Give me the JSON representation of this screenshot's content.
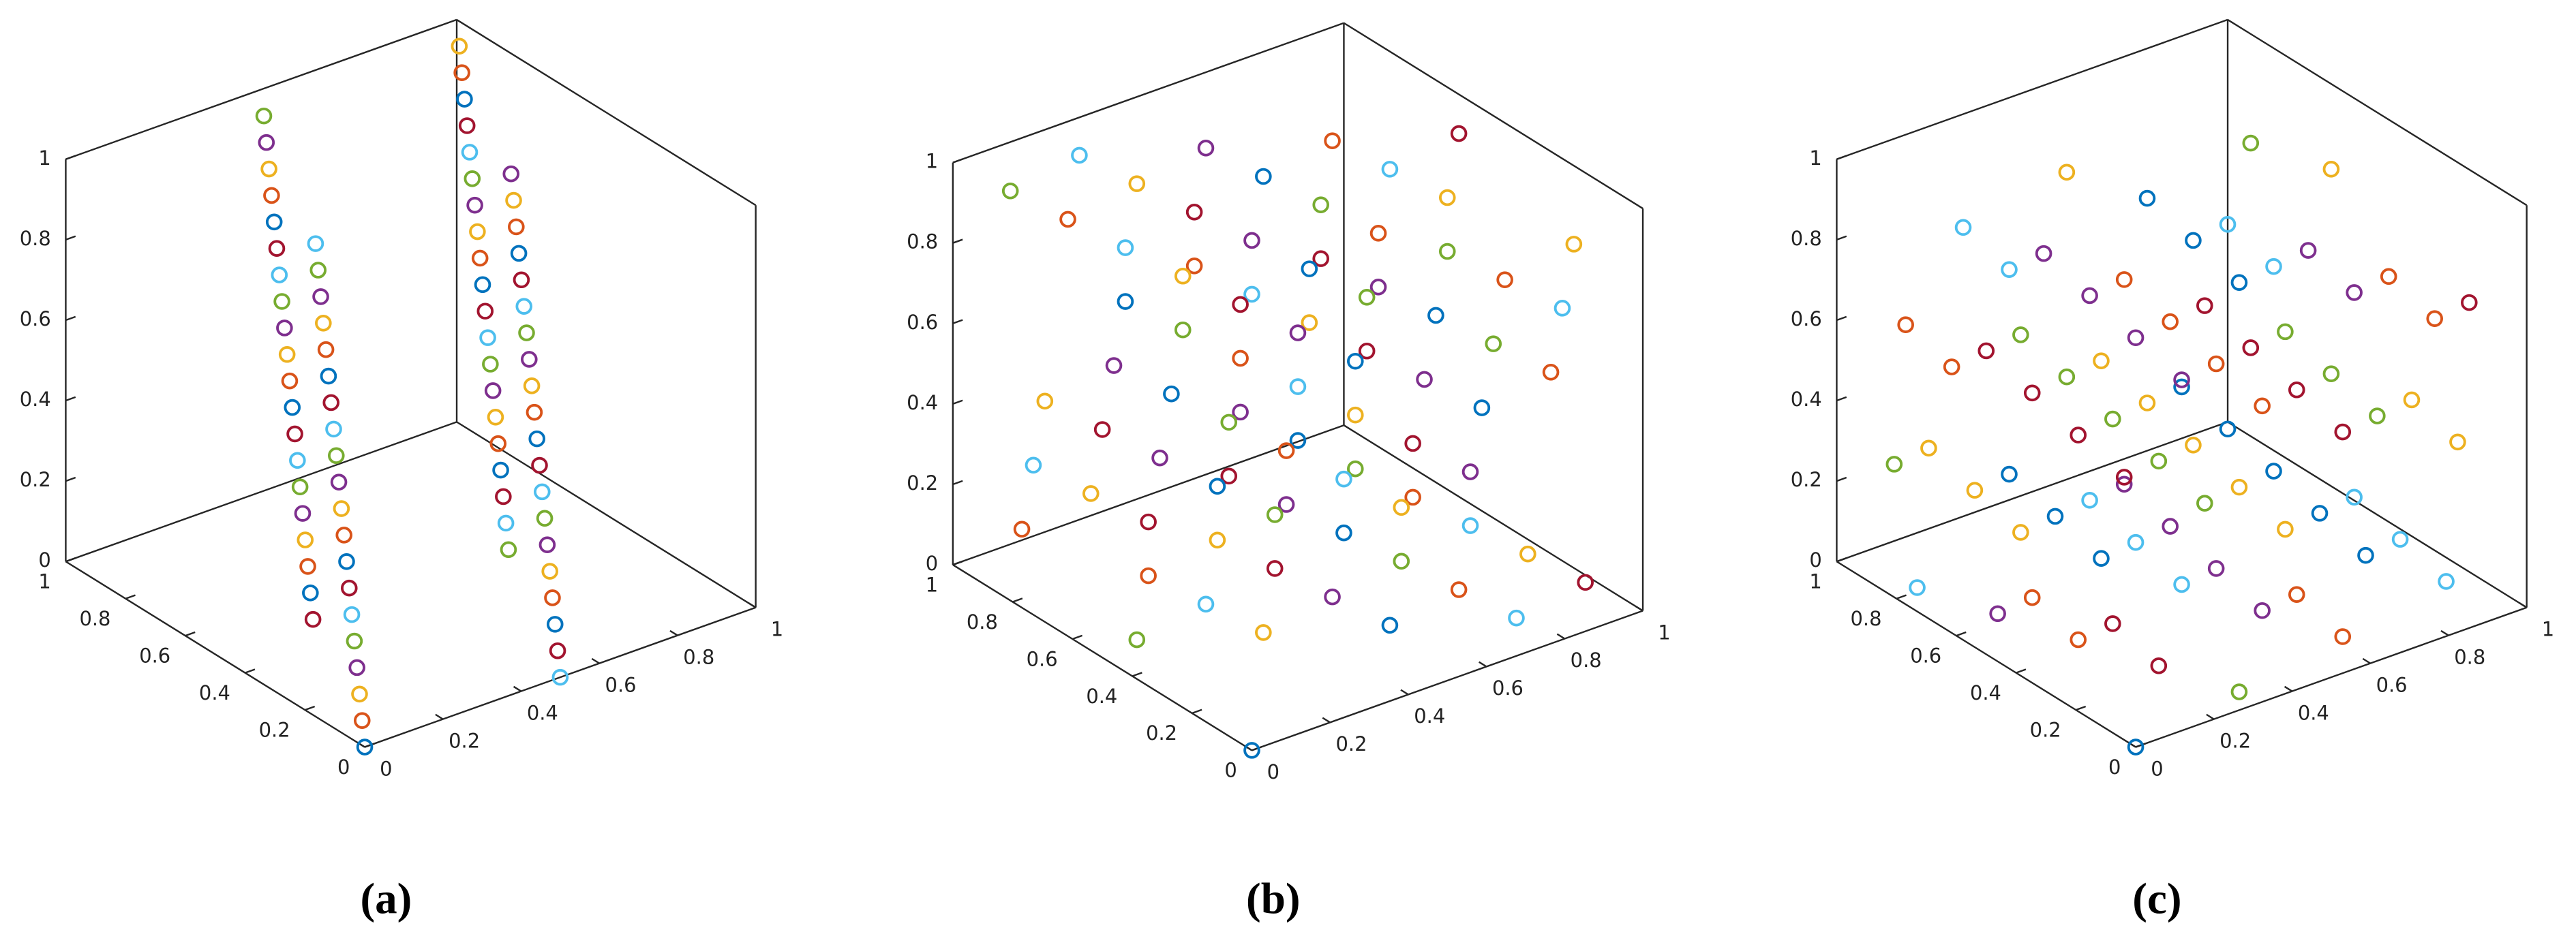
{
  "chart_data": [
    {
      "type": "scatter3d",
      "label": "(a)",
      "colors": [
        "#0072BD",
        "#D95319",
        "#EDB120",
        "#7E2F8E",
        "#77AC30",
        "#4DBEEE",
        "#A2142F"
      ],
      "xlim": [
        0,
        1
      ],
      "ylim": [
        0,
        1
      ],
      "zlim": [
        0,
        1
      ],
      "xticks": [
        0,
        0.2,
        0.4,
        0.6,
        0.8,
        1
      ],
      "yticks": [
        0,
        0.2,
        0.4,
        0.6,
        0.8,
        1
      ],
      "zticks": [
        0,
        0.2,
        0.4,
        0.6,
        0.8,
        1
      ],
      "x": [
        0,
        0.0125,
        0.025,
        0.0375,
        0.05,
        0.0625,
        0.075,
        0.0875,
        0.1,
        0.1125,
        0.125,
        0.1375,
        0.15,
        0.1625,
        0.175,
        0.1875,
        0.2,
        0.2125,
        0.225,
        0.2375,
        0.25,
        0.2625,
        0.275,
        0.2875,
        0.3,
        0.3125,
        0.325,
        0.3375,
        0.35,
        0.3625,
        0.375,
        0.3875,
        0.4,
        0.4125,
        0.425,
        0.4375,
        0.45,
        0.4625,
        0.475,
        0.4875,
        0.5,
        0.5125,
        0.525,
        0.5375,
        0.55,
        0.5625,
        0.575,
        0.5875,
        0.6,
        0.6125,
        0.625,
        0.6375,
        0.65,
        0.6625,
        0.675,
        0.6875,
        0.7,
        0.7125,
        0.725,
        0.7375,
        0.75,
        0.7625,
        0.775,
        0.7875,
        0.8,
        0.8125,
        0.825,
        0.8375,
        0.85,
        0.8625,
        0.875,
        0.8875,
        0.9,
        0.9125,
        0.925,
        0.9375,
        0.95,
        0.9625,
        0.975,
        0.9875
      ],
      "y": [
        0,
        0.025,
        0.05,
        0.075,
        0.1,
        0.125,
        0.15,
        0.175,
        0.2,
        0.225,
        0.25,
        0.275,
        0.3,
        0.325,
        0.35,
        0.375,
        0.4,
        0.425,
        0.45,
        0.475,
        0.5,
        0.525,
        0.55,
        0.575,
        0.6,
        0.625,
        0.65,
        0.675,
        0.7,
        0.725,
        0.75,
        0.775,
        0.8,
        0.825,
        0.85,
        0.875,
        0.9,
        0.925,
        0.95,
        0.975,
        0,
        0.025,
        0.05,
        0.075,
        0.1,
        0.125,
        0.15,
        0.175,
        0.2,
        0.225,
        0.25,
        0.275,
        0.3,
        0.325,
        0.35,
        0.375,
        0.4,
        0.425,
        0.45,
        0.475,
        0.5,
        0.525,
        0.55,
        0.575,
        0.6,
        0.625,
        0.65,
        0.675,
        0.7,
        0.725,
        0.75,
        0.775,
        0.8,
        0.825,
        0.85,
        0.875,
        0.9,
        0.925,
        0.95,
        0.975
      ],
      "z": [
        0,
        0.05,
        0.1,
        0.15,
        0.2,
        0.25,
        0.3,
        0.35,
        0.4,
        0.45,
        0.5,
        0.55,
        0.6,
        0.65,
        0.7,
        0.75,
        0.8,
        0.85,
        0.9,
        0.95,
        0,
        0.05,
        0.1,
        0.15,
        0.2,
        0.25,
        0.3,
        0.35,
        0.4,
        0.45,
        0.5,
        0.55,
        0.6,
        0.65,
        0.7,
        0.75,
        0.8,
        0.85,
        0.9,
        0.95,
        0,
        0.05,
        0.1,
        0.15,
        0.2,
        0.25,
        0.3,
        0.35,
        0.4,
        0.45,
        0.5,
        0.55,
        0.6,
        0.65,
        0.7,
        0.75,
        0.8,
        0.85,
        0.9,
        0.95,
        0,
        0.05,
        0.1,
        0.15,
        0.2,
        0.25,
        0.3,
        0.35,
        0.4,
        0.45,
        0.5,
        0.55,
        0.6,
        0.65,
        0.7,
        0.75,
        0.8,
        0.85,
        0.9,
        0.95
      ]
    },
    {
      "type": "scatter3d",
      "label": "(b)",
      "colors": [
        "#0072BD",
        "#D95319",
        "#EDB120",
        "#7E2F8E",
        "#77AC30",
        "#4DBEEE",
        "#A2142F"
      ],
      "xlim": [
        0,
        1
      ],
      "ylim": [
        0,
        1
      ],
      "zlim": [
        0,
        1
      ],
      "xticks": [
        0,
        0.2,
        0.4,
        0.6,
        0.8,
        1
      ],
      "yticks": [
        0,
        0.2,
        0.4,
        0.6,
        0.8,
        1
      ],
      "zticks": [
        0,
        0.2,
        0.4,
        0.6,
        0.8,
        1
      ],
      "x": [
        0,
        0.0125,
        0.025,
        0.0375,
        0.05,
        0.0625,
        0.075,
        0.0875,
        0.1,
        0.1125,
        0.125,
        0.1375,
        0.15,
        0.1625,
        0.175,
        0.1875,
        0.2,
        0.2125,
        0.225,
        0.2375,
        0.25,
        0.2625,
        0.275,
        0.2875,
        0.3,
        0.3125,
        0.325,
        0.3375,
        0.35,
        0.3625,
        0.375,
        0.3875,
        0.4,
        0.4125,
        0.425,
        0.4375,
        0.45,
        0.4625,
        0.475,
        0.4875,
        0.5,
        0.5125,
        0.525,
        0.5375,
        0.55,
        0.5625,
        0.575,
        0.5875,
        0.6,
        0.6125,
        0.625,
        0.6375,
        0.65,
        0.6625,
        0.675,
        0.6875,
        0.7,
        0.7125,
        0.725,
        0.7375,
        0.75,
        0.7625,
        0.775,
        0.7875,
        0.8,
        0.8125,
        0.825,
        0.8375,
        0.85,
        0.8625,
        0.875,
        0.8875,
        0.9,
        0.9125,
        0.925,
        0.9375,
        0.95,
        0.9625,
        0.975,
        0.9875
      ],
      "y": [
        0,
        0.3625,
        0.725,
        0.0875,
        0.45,
        0.8125,
        0.175,
        0.5375,
        0.9,
        0.2625,
        0.625,
        0.9875,
        0.35,
        0.7125,
        0.075,
        0.4375,
        0.8,
        0.1625,
        0.525,
        0.8875,
        0.25,
        0.6125,
        0.975,
        0.3375,
        0.7,
        0.0625,
        0.425,
        0.7875,
        0.15,
        0.5125,
        0.875,
        0.2375,
        0.6,
        0.9625,
        0.325,
        0.6875,
        0.05,
        0.4125,
        0.775,
        0.1375,
        0.5,
        0.8625,
        0.225,
        0.5875,
        0.95,
        0.3125,
        0.675,
        0.0375,
        0.4,
        0.7625,
        0.125,
        0.4875,
        0.85,
        0.2125,
        0.575,
        0.9375,
        0.3,
        0.6625,
        0.025,
        0.3875,
        0.75,
        0.1125,
        0.475,
        0.8375,
        0.2,
        0.5625,
        0.925,
        0.2875,
        0.65,
        0.0125,
        0.375,
        0.7375,
        0.1,
        0.4625,
        0.825,
        0.1875,
        0.55,
        0.9125,
        0.275,
        0.6375
      ],
      "z": [
        0,
        0.2625,
        0.525,
        0.7875,
        0.05,
        0.3125,
        0.575,
        0.8375,
        0.1,
        0.3625,
        0.625,
        0.8875,
        0.15,
        0.4125,
        0.675,
        0.9375,
        0.2,
        0.4625,
        0.725,
        0.9875,
        0.25,
        0.5125,
        0.775,
        0.0375,
        0.3,
        0.5625,
        0.825,
        0.0875,
        0.35,
        0.6125,
        0.875,
        0.1375,
        0.4,
        0.6625,
        0.925,
        0.1875,
        0.45,
        0.7125,
        0.975,
        0.2375,
        0.5,
        0.7625,
        0.025,
        0.2875,
        0.55,
        0.8125,
        0.075,
        0.3375,
        0.6,
        0.8625,
        0.125,
        0.3875,
        0.65,
        0.9125,
        0.175,
        0.4375,
        0.7,
        0.9625,
        0.225,
        0.4875,
        0.75,
        0.0125,
        0.275,
        0.5375,
        0.8,
        0.0625,
        0.325,
        0.5875,
        0.85,
        0.1125,
        0.375,
        0.6375,
        0.9,
        0.1625,
        0.425,
        0.6875,
        0.95,
        0.2125,
        0.475,
        0.7375
      ]
    },
    {
      "type": "scatter3d",
      "label": "(c)",
      "colors": [
        "#0072BD",
        "#D95319",
        "#EDB120",
        "#7E2F8E",
        "#77AC30",
        "#4DBEEE",
        "#A2142F"
      ],
      "xlim": [
        0,
        1
      ],
      "ylim": [
        0,
        1
      ],
      "zlim": [
        0,
        1
      ],
      "xticks": [
        0,
        0.2,
        0.4,
        0.6,
        0.8,
        1
      ],
      "yticks": [
        0,
        0.2,
        0.4,
        0.6,
        0.8,
        1
      ],
      "zticks": [
        0,
        0.2,
        0.4,
        0.6,
        0.8,
        1
      ],
      "x": [
        0,
        0.0125,
        0.025,
        0.0375,
        0.05,
        0.0625,
        0.075,
        0.0875,
        0.1,
        0.1125,
        0.125,
        0.1375,
        0.15,
        0.1625,
        0.175,
        0.1875,
        0.2,
        0.2125,
        0.225,
        0.2375,
        0.25,
        0.2625,
        0.275,
        0.2875,
        0.3,
        0.3125,
        0.325,
        0.3375,
        0.35,
        0.3625,
        0.375,
        0.3875,
        0.4,
        0.4125,
        0.425,
        0.4375,
        0.45,
        0.4625,
        0.475,
        0.4875,
        0.5,
        0.5125,
        0.525,
        0.5375,
        0.55,
        0.5625,
        0.575,
        0.5875,
        0.6,
        0.6125,
        0.625,
        0.6375,
        0.65,
        0.6625,
        0.675,
        0.6875,
        0.7,
        0.7125,
        0.725,
        0.7375,
        0.75,
        0.7625,
        0.775,
        0.7875,
        0.8,
        0.8125,
        0.825,
        0.8375,
        0.85,
        0.8625,
        0.875,
        0.8875,
        0.9,
        0.9125,
        0.925,
        0.9375,
        0.95,
        0.9625,
        0.975,
        0.9875
      ],
      "y": [
        0,
        0.3625,
        0.725,
        0.0875,
        0.45,
        0.8125,
        0.175,
        0.5375,
        0.9,
        0.2625,
        0.625,
        0.9875,
        0.35,
        0.7125,
        0.075,
        0.4375,
        0.8,
        0.1625,
        0.525,
        0.8875,
        0.25,
        0.6125,
        0.975,
        0.3375,
        0.7,
        0.0625,
        0.425,
        0.7875,
        0.15,
        0.5125,
        0.875,
        0.2375,
        0.6,
        0.9625,
        0.325,
        0.6875,
        0.05,
        0.4125,
        0.775,
        0.1375,
        0.5,
        0.8625,
        0.225,
        0.5875,
        0.95,
        0.3125,
        0.675,
        0.0375,
        0.4,
        0.7625,
        0.125,
        0.4875,
        0.85,
        0.2125,
        0.575,
        0.9375,
        0.3,
        0.6625,
        0.025,
        0.3875,
        0.75,
        0.1125,
        0.475,
        0.8375,
        0.2,
        0.5625,
        0.925,
        0.2875,
        0.65,
        0.0125,
        0.375,
        0.7375,
        0.1,
        0.4625,
        0.825,
        0.1875,
        0.55,
        0.9125,
        0.275,
        0.6375
      ],
      "z": [
        0,
        0.2,
        0.4,
        0.6,
        0.8,
        0,
        0.2,
        0.4,
        0.6,
        0.8,
        0,
        0.2,
        0.4,
        0.6,
        0.8,
        0,
        0.2,
        0.4,
        0.6,
        0.8,
        0,
        0.2,
        0.4,
        0.6,
        0.8,
        0,
        0.2,
        0.4,
        0.6,
        0.8,
        0,
        0.2,
        0.4,
        0.6,
        0.8,
        0,
        0.2,
        0.4,
        0.6,
        0.8,
        0,
        0.2,
        0.4,
        0.6,
        0.8,
        0,
        0.2,
        0.4,
        0.6,
        0.8,
        0,
        0.2,
        0.4,
        0.6,
        0.8,
        0,
        0.2,
        0.4,
        0.6,
        0.8,
        0,
        0.2,
        0.4,
        0.6,
        0.8,
        0,
        0.2,
        0.4,
        0.6,
        0.8,
        0,
        0.2,
        0.4,
        0.6,
        0.8,
        0,
        0.2,
        0.4,
        0.6,
        0.8
      ]
    }
  ]
}
